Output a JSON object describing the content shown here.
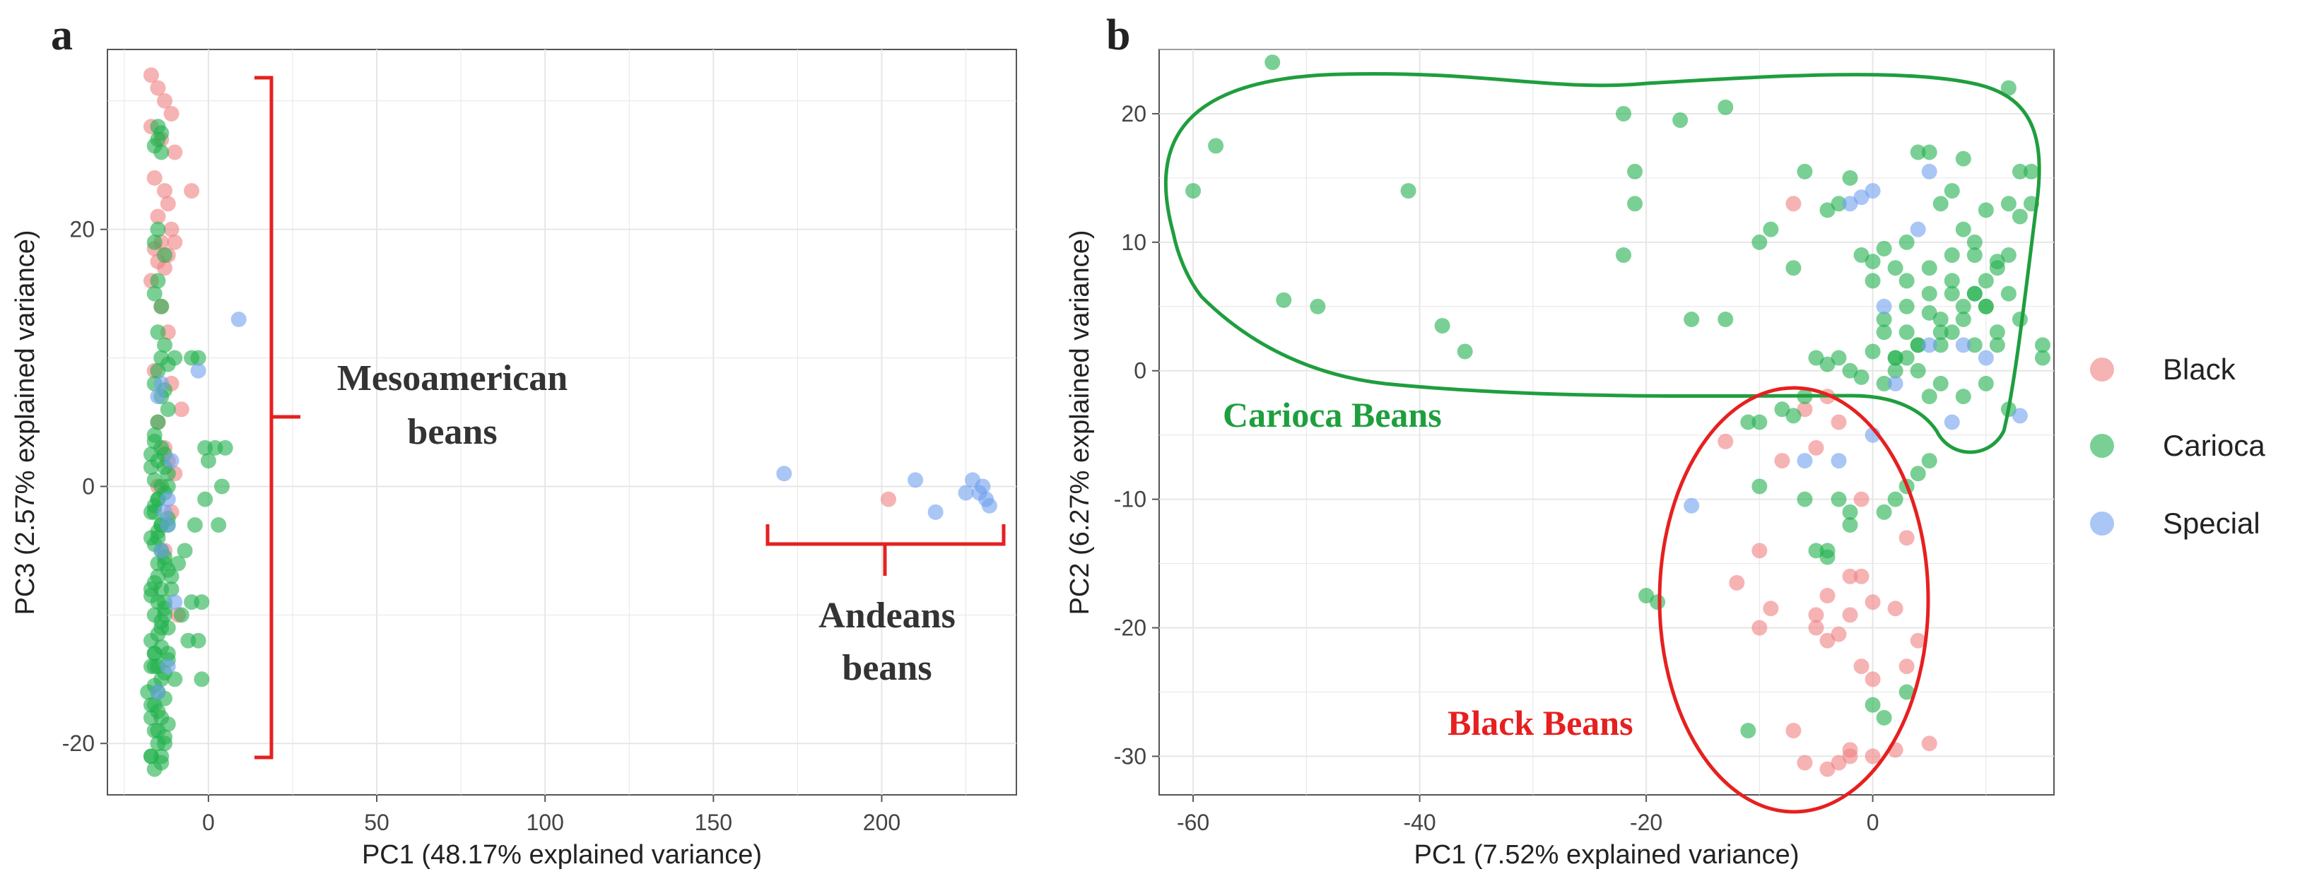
{
  "figure": {
    "panel_a_letter": "a",
    "panel_b_letter": "b",
    "legend": {
      "entries": [
        {
          "label": "Black",
          "color": "#f08080"
        },
        {
          "label": "Carioca",
          "color": "#22b14c"
        },
        {
          "label": "Special",
          "color": "#6fa0ee"
        }
      ]
    }
  },
  "colors": {
    "Black": "#f08080",
    "Carioca": "#22b14c",
    "Special": "#6fa0ee",
    "annotation_red": "#e62020",
    "annotation_green": "#1f9e3e"
  },
  "chart_data": [
    {
      "type": "scatter",
      "panel": "a",
      "xlabel": "PC1 (48.17% explained variance)",
      "ylabel": "PC3 (2.57% explained variance)",
      "xlim": [
        -30,
        240
      ],
      "ylim": [
        -24,
        34
      ],
      "xticks": [
        0,
        50,
        100,
        150,
        200
      ],
      "yticks": [
        -20,
        0,
        20
      ],
      "grid": true,
      "annotations": [
        {
          "name": "mesoamerican",
          "line1": "Mesoamerican",
          "line2": "beans"
        },
        {
          "name": "andeans",
          "line1": "Andeans",
          "line2": "beans"
        }
      ],
      "series": [
        {
          "name": "Black",
          "x": [
            -17,
            -15,
            -13,
            -11,
            -17,
            -14,
            -10,
            -16,
            -13,
            -12,
            -15,
            -11,
            -14,
            -16,
            -12,
            -5,
            -15,
            -13,
            -10,
            -17,
            -14,
            -12,
            -16,
            -11,
            -8,
            -15,
            -13,
            -12,
            -10,
            -15,
            -11,
            202,
            -13,
            -9
          ],
          "y": [
            32,
            31,
            30,
            29,
            28,
            27,
            26,
            24,
            23,
            22,
            21,
            20,
            19,
            18.5,
            18,
            23,
            17.5,
            17,
            19,
            16,
            14,
            12,
            9,
            8,
            6,
            5,
            3,
            2,
            1,
            0,
            -2,
            -1,
            -5,
            -10
          ]
        },
        {
          "name": "Carioca",
          "x": [
            -15,
            -14,
            -15,
            -16,
            -14,
            -15,
            -16,
            -13,
            -15,
            -16,
            -14,
            -15,
            -13,
            -14,
            -12,
            -15,
            -16,
            -13,
            -14,
            -12,
            -10,
            -5,
            -3,
            -15,
            -16,
            -14,
            -13,
            -15,
            -17,
            -12,
            -16,
            -14,
            -13,
            -15,
            -16,
            -17,
            -12,
            -14,
            -15,
            -17,
            -16,
            -14,
            -13,
            -15,
            -12,
            -11,
            -16,
            -14,
            -17,
            -15,
            -13,
            -16,
            -14,
            -12,
            -15,
            -17,
            -14,
            -16,
            -12,
            -15,
            -13,
            -14,
            -16,
            -15,
            -13,
            -17,
            -15,
            -14,
            -12,
            -16,
            -13,
            -15,
            -17,
            -14,
            -16,
            -12,
            -15,
            -13,
            -17,
            -14,
            -16,
            -15,
            -12,
            -13,
            -17,
            -16,
            -14,
            -15,
            -13,
            -16,
            -1,
            5,
            3,
            -17,
            -3,
            -2,
            -5,
            -10,
            -12,
            -8,
            0,
            2,
            4,
            -1,
            -4,
            -7,
            -9,
            -11,
            -13,
            -6,
            -2,
            -16,
            -17,
            -15,
            -13,
            -18,
            -17,
            -14,
            -16
          ],
          "y": [
            28,
            27.5,
            27,
            26.5,
            26,
            20,
            19,
            18,
            16,
            15,
            14,
            12,
            11,
            10,
            9.5,
            9,
            8,
            7.5,
            7,
            6,
            10,
            10,
            10,
            5,
            4,
            3,
            2.5,
            2,
            1.5,
            1,
            0.5,
            0,
            -0.5,
            -1,
            -1.5,
            -2,
            -2.5,
            -3,
            -3.5,
            -4,
            -4.5,
            -5,
            -5.5,
            -6,
            -6.5,
            -7,
            -7.5,
            -8,
            -8.5,
            -9,
            -9.5,
            -10,
            -10.5,
            -11,
            -11.5,
            -12,
            -12.5,
            -13,
            -13.5,
            -14,
            -14.5,
            -15,
            -15.5,
            -16,
            -16.5,
            -17,
            -17.5,
            -18,
            -18.5,
            -19,
            -19.5,
            -20,
            -21,
            -21.5,
            -2,
            -3,
            -4,
            -6,
            -8,
            -11,
            -13,
            -1,
            0,
            1.5,
            2.5,
            3.5,
            -3,
            -7,
            -9,
            -14,
            3,
            3,
            -3,
            -14,
            -12,
            -9,
            -9,
            -15,
            -13,
            -10,
            2,
            3,
            0,
            -1,
            -3,
            -5,
            -6,
            -8,
            -10,
            -12,
            -15,
            -17,
            -18,
            -19,
            -20,
            -16,
            -21,
            -21,
            -22
          ],
          "note": "approximate"
        },
        {
          "name": "Special",
          "x": [
            9,
            -3,
            -15,
            -14,
            -11,
            -12,
            -13,
            -12,
            -14,
            -10,
            -12,
            -15,
            171,
            210,
            216,
            227,
            229,
            230,
            231,
            232,
            225
          ],
          "y": [
            13,
            9,
            7,
            8,
            2,
            -1,
            -2,
            -3,
            -5,
            -9,
            -14,
            -16,
            1,
            0.5,
            -2,
            0.5,
            -0.5,
            0,
            -1,
            -1.5,
            -0.5
          ]
        }
      ]
    },
    {
      "type": "scatter",
      "panel": "b",
      "xlabel": "PC1 (7.52% explained variance)",
      "ylabel": "PC2 (6.27% explained variance)",
      "xlim": [
        -63,
        16
      ],
      "ylim": [
        -33,
        25
      ],
      "xticks": [
        -60,
        -40,
        -20,
        0
      ],
      "yticks": [
        -30,
        -20,
        -10,
        0,
        10,
        20
      ],
      "grid": true,
      "annotations": [
        {
          "name": "carioca-beans",
          "text": "Carioca Beans"
        },
        {
          "name": "black-beans",
          "text": "Black Beans"
        }
      ],
      "series": [
        {
          "name": "Black",
          "x": [
            -7,
            -4,
            -5,
            -3,
            -13,
            -8,
            -6,
            -4,
            -2,
            -1,
            0,
            2,
            3,
            -12,
            -9,
            -10,
            -5,
            -4,
            -3,
            -2,
            -1,
            0,
            3,
            4,
            5,
            -2,
            -3,
            -7,
            -6,
            -4,
            -2,
            0,
            2,
            -5,
            -10,
            -1
          ],
          "y": [
            13,
            -2,
            -6,
            -4,
            -5.5,
            -7,
            -3,
            -17.5,
            -19,
            -16,
            -18,
            -18.5,
            -13,
            -16.5,
            -18.5,
            -20,
            -19,
            -21,
            -20.5,
            -16,
            -23,
            -24,
            -23,
            -21,
            -29,
            -29.5,
            -30.5,
            -28,
            -30.5,
            -31,
            -30,
            -30,
            -29.5,
            -20,
            -14,
            -10
          ]
        },
        {
          "name": "Carioca",
          "x": [
            -60,
            -58,
            -53,
            -52,
            -49,
            -41,
            -38,
            -36,
            -22,
            -21,
            -21,
            -22,
            -17,
            -16,
            -13,
            -13,
            -10,
            -9,
            -7,
            -6,
            -4,
            -3,
            -2,
            -1,
            0,
            0,
            1,
            1,
            2,
            3,
            3,
            4,
            5,
            5,
            6,
            6,
            7,
            7,
            8,
            8,
            9,
            9,
            10,
            10,
            11,
            11,
            12,
            12,
            13,
            13,
            14,
            14,
            15,
            15,
            -5,
            -4,
            -3,
            -2,
            -1,
            0,
            1,
            2,
            3,
            4,
            5,
            6,
            7,
            8,
            9,
            10,
            11,
            12,
            -11,
            -10,
            -8,
            -6,
            -4,
            -2,
            -20,
            -19,
            -11,
            -6,
            -5,
            -4,
            -3,
            -2,
            1,
            2,
            3,
            4,
            5,
            0,
            1,
            3,
            -7,
            -10,
            2,
            4,
            6,
            8,
            10,
            12,
            1,
            3,
            5,
            7,
            9,
            11,
            13,
            2,
            4,
            6,
            8,
            10,
            12,
            3,
            5,
            7,
            9
          ],
          "y": [
            14,
            17.5,
            24,
            5.5,
            5,
            14,
            3.5,
            1.5,
            20,
            15.5,
            13,
            9,
            19.5,
            4,
            20.5,
            4,
            10,
            11,
            8,
            15.5,
            12.5,
            13,
            15,
            9,
            8.5,
            7,
            9.5,
            3,
            8,
            3,
            10,
            17,
            17,
            4.5,
            4,
            13,
            14,
            6,
            16.5,
            11,
            6,
            9,
            12.5,
            5,
            8.5,
            2,
            22,
            13,
            15.5,
            12,
            13,
            15.5,
            2,
            1,
            1,
            0.5,
            1,
            0,
            -0.5,
            1.5,
            -1,
            0,
            1,
            2,
            -2,
            2,
            3,
            5,
            6,
            7,
            8,
            9,
            -4,
            -9,
            -3,
            -2,
            -14,
            -11,
            -17.5,
            -18,
            -28,
            -10,
            -14,
            -14.5,
            -10,
            -12,
            -11,
            -10,
            -9,
            -8,
            -7,
            -26,
            -27,
            -25,
            -3.5,
            -4,
            1,
            2,
            3,
            4,
            5,
            6,
            4,
            5,
            6,
            7,
            2,
            3,
            4,
            1,
            0,
            -1,
            -2,
            -1,
            -3,
            7,
            8,
            9,
            10
          ],
          "note": "approximate"
        },
        {
          "name": "Special",
          "x": [
            -2,
            -1,
            0,
            5,
            4,
            1,
            -6,
            -16,
            -3,
            0,
            7,
            13,
            5,
            8,
            10,
            2
          ],
          "y": [
            13,
            13.5,
            14,
            15.5,
            11,
            5,
            -7,
            -10.5,
            -7,
            -5,
            -4,
            -3.5,
            2,
            2,
            1,
            -1
          ]
        }
      ]
    }
  ]
}
